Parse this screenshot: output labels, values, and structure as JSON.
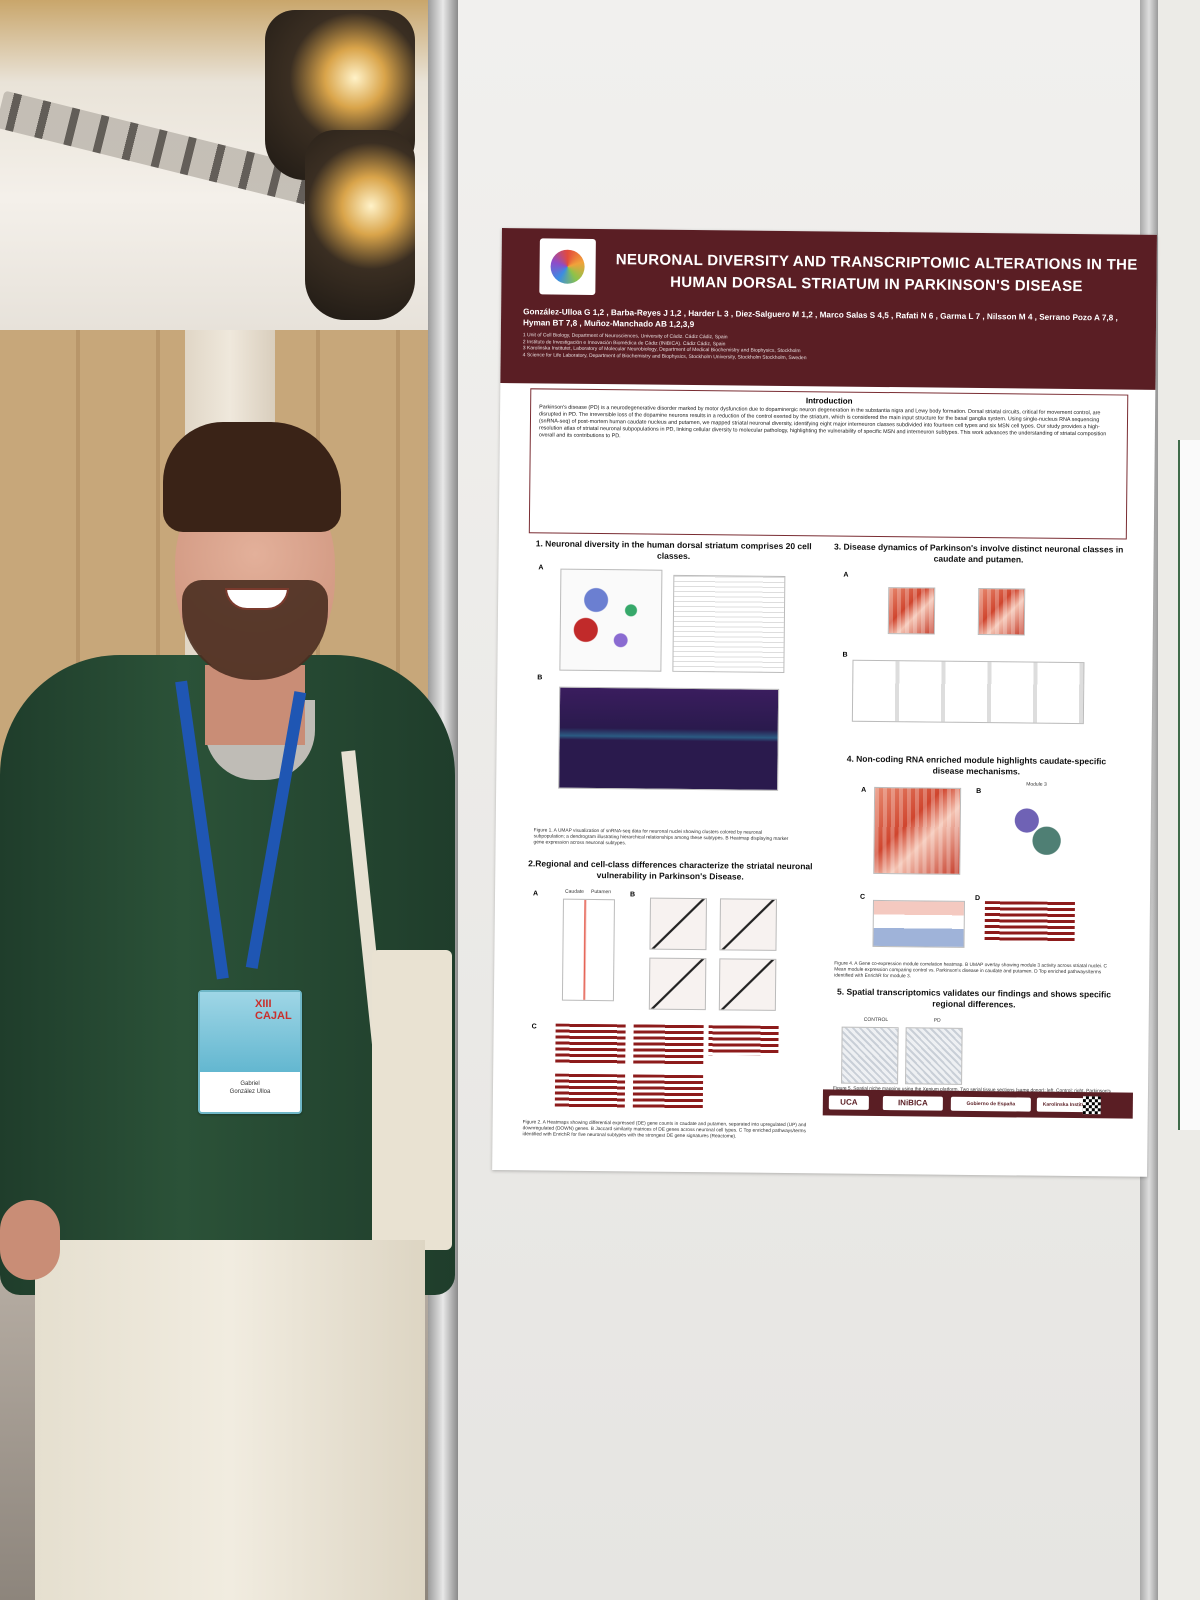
{
  "poster": {
    "title": "NEURONAL DIVERSITY AND TRANSCRIPTOMIC ALTERATIONS IN THE HUMAN DORSAL STRIATUM IN PARKINSON'S DISEASE",
    "authors": "González-Ulloa G 1,2 , Barba-Reyes J 1,2 , Harder L 3 , Diez-Salguero M 1,2 , Marco Salas S 4,5 , Rafati N 6 , Garma L 7 , Nilsson M 4 , Serrano Pozo A 7,8 , Hyman BT 7,8 , Muñoz-Manchado AB 1,2,3,9",
    "affiliations": "1 Unit of Cell Biology, Department of Neurosciences, University of Cádiz. Cádiz Cádiz, Spain\n2 Instituto de Investigación e Innovación Biomédica de Cádiz (INiBICA). Cádiz Cádiz, Spain\n3 Karolinska Institutet, Laboratory of Molecular Neurobiology, Department of Medical Biochemistry and Biophysics, Stockholm\n4 Science for Life Laboratory, Department of Biochemistry and Biophysics, Stockholm University, Stockholm Stockholm, Sweden",
    "intro_heading": "Introduction",
    "intro_text": "Parkinson's disease (PD) is a neurodegenerative disorder marked by motor dysfunction due to dopaminergic neuron degeneration in the substantia nigra and Lewy body formation. Dorsal striatal circuits, critical for movement control, are disrupted in PD. The irreversible loss of the dopamine neurons results in a reduction of the control exerted by the striatum, which is considered the main input structure for the basal ganglia system. Using single-nucleus RNA sequencing (snRNA-seq) of post-mortem human caudate nucleus and putamen, we mapped striatal neuronal diversity, identifying eight major interneuron classes subdivided into fourteen cell types and six MSN cell types. Our study provides a high-resolution atlas of striatal neuronal subpopulations in PD, linking cellular diversity to molecular pathology, highlighting the vulnerability of specific MSN and interneuron subtypes. This work advances the understanding of striatal composition overall and its contributions to PD.",
    "section1": "1. Neuronal diversity in the human dorsal striatum comprises 20 cell classes.",
    "section2": "2.Regional and cell-class differences characterize the striatal neuronal vulnerability in Parkinson's Disease.",
    "section3": "3. Disease dynamics of Parkinson's involve distinct neuronal classes in caudate and putamen.",
    "section4": "4. Non-coding RNA enriched module highlights caudate-specific disease mechanisms.",
    "section5": "5. Spatial transcriptomics validates our findings and shows specific regional differences.",
    "letters": {
      "a": "A",
      "b": "B",
      "c": "C",
      "d": "D"
    },
    "label_caudate": "Caudate",
    "label_putamen": "Putamen",
    "label_control": "CONTROL",
    "label_pd": "PD",
    "label_module": "Module 3",
    "fig1_caption": "Figure 1. A UMAP visualization of snRNA-seq data for neuronal nuclei showing clusters colored by neuronal subpopulation; a dendrogram illustrating hierarchical relationships among these subtypes. B Heatmap displaying marker gene expression across neuronal subtypes.",
    "fig2_caption": "Figure 2. A Heatmaps showing differential expressed (DE) gene counts in caudate and putamen, separated into upregulated (UP) and downregulated (DOWN) genes. B Jaccard similarity matrices of DE genes across neuronal cell types. C Top enriched pathways/terms identified with EnrichR for five neuronal subtypes with the strongest DE gene signatures (Reactome).",
    "fig4_caption": "Figure 4. A Gene co-expression module correlation heatmap. B UMAP overlay showing module 3 activity across striatal nuclei. C Mean module expression comparing control vs. Parkinson's disease in caudate and putamen. D Top enriched pathways/terms identified with EnrichR for module 3.",
    "fig5_caption": "Figure 5. Spatial niche mapping using the Xenium platform. Two serial tissue sections (same donor): left, Control; right, Parkinson's Disease. Each colored by computationally identified domains.",
    "footer_logos": [
      "UCA",
      "INiBICA",
      "Gobierno de España",
      "Karolinska Institutet"
    ]
  },
  "badge": {
    "logo": "XIII CAJAL",
    "name": "Gabriel\nGonzález Ulloa"
  },
  "colors": {
    "poster_maroon": "#5a1e24",
    "shirt_green": "#2b5238",
    "lanyard_blue": "#1f56b3"
  }
}
